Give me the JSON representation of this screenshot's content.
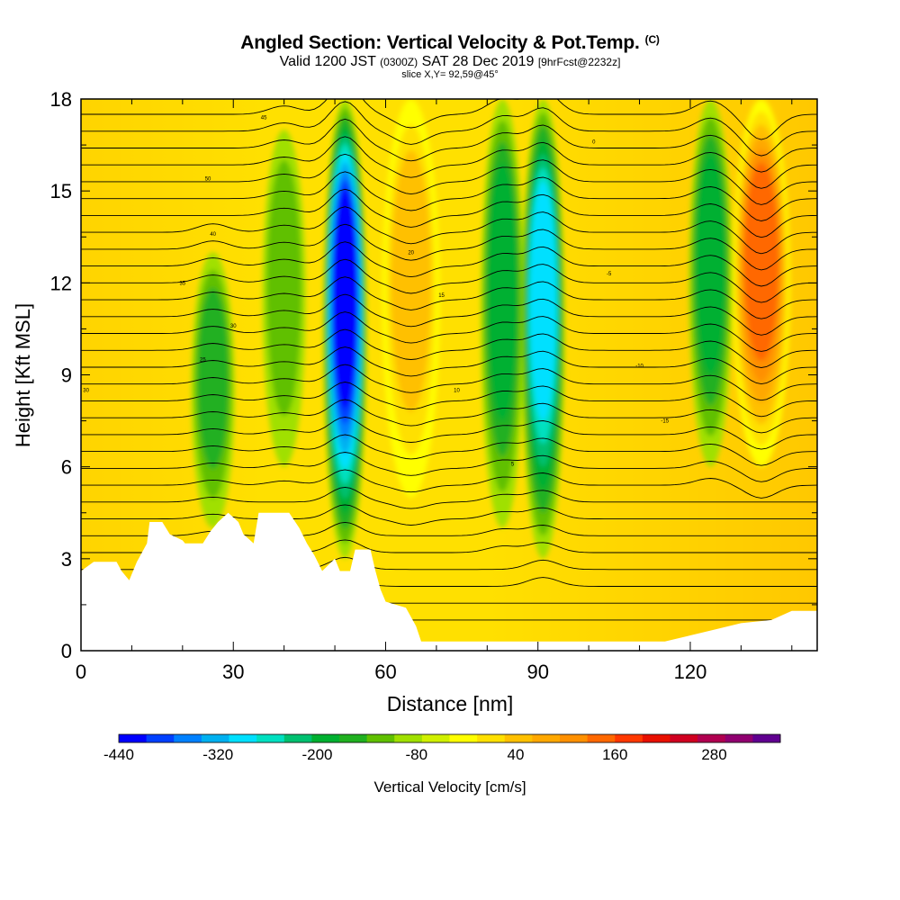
{
  "title": {
    "main": "Angled Section: Vertical Velocity & Pot.Temp.",
    "copyright": "(C)",
    "valid_prefix": "Valid 1200 JST",
    "utc_time": "(0300Z)",
    "date": "SAT 28 Dec 2019",
    "forecast": "[9hrFcst@2232z]",
    "slice": "slice X,Y= 92,59@45°"
  },
  "chart_data": {
    "type": "heatmap",
    "title": "Angled Section: Vertical Velocity & Pot.Temp.",
    "xlabel": "Distance [nm]",
    "ylabel": "Height [Kft MSL]",
    "xlim": [
      0,
      145
    ],
    "ylim": [
      0,
      18
    ],
    "x_ticks": [
      0,
      30,
      60,
      90,
      120
    ],
    "y_ticks": [
      0,
      3,
      6,
      9,
      12,
      15,
      18
    ],
    "colorbar": {
      "label": "Vertical Velocity [cm/s]",
      "range": [
        -440,
        360
      ],
      "step": 40,
      "tick_labels": [
        "-440",
        "-320",
        "-200",
        "-80",
        "40",
        "160",
        "280"
      ],
      "colors": [
        "#0000ff",
        "#0040ff",
        "#0080ff",
        "#00b0f0",
        "#00e0ff",
        "#00e0c0",
        "#00c070",
        "#00b030",
        "#20b020",
        "#60c000",
        "#a0e000",
        "#d0f000",
        "#ffff00",
        "#ffe000",
        "#ffc000",
        "#ffa800",
        "#ff9000",
        "#ff6800",
        "#ff3800",
        "#e81000",
        "#d00020",
        "#b00050",
        "#900070",
        "#600090"
      ]
    },
    "velocity_features": [
      {
        "x_center": 52,
        "kind": "downdraft",
        "peak_cms": -440,
        "height_range": [
          3,
          18
        ]
      },
      {
        "x_center": 65,
        "kind": "updraft",
        "peak_cms": 160,
        "height_range": [
          5,
          18
        ]
      },
      {
        "x_center": 83,
        "kind": "downdraft",
        "peak_cms": -180,
        "height_range": [
          4,
          18
        ]
      },
      {
        "x_center": 91,
        "kind": "downdraft",
        "peak_cms": -280,
        "height_range": [
          3,
          18
        ]
      },
      {
        "x_center": 124,
        "kind": "downdraft",
        "peak_cms": -160,
        "height_range": [
          6,
          18
        ]
      },
      {
        "x_center": 134,
        "kind": "updraft",
        "peak_cms": 300,
        "height_range": [
          6,
          18
        ]
      },
      {
        "x_center": 26,
        "kind": "downdraft",
        "peak_cms": -120,
        "height_range": [
          4,
          13
        ]
      },
      {
        "x_center": 40,
        "kind": "downdraft",
        "peak_cms": -100,
        "height_range": [
          6,
          17
        ]
      }
    ],
    "terrain_profile_kft": [
      [
        0,
        2.6
      ],
      [
        2.5,
        2.9
      ],
      [
        7,
        2.9
      ],
      [
        8,
        2.6
      ],
      [
        9.5,
        2.3
      ],
      [
        11,
        2.9
      ],
      [
        13,
        3.5
      ],
      [
        13.5,
        4.2
      ],
      [
        16,
        4.2
      ],
      [
        17.5,
        3.8
      ],
      [
        20,
        3.6
      ],
      [
        20.5,
        3.5
      ],
      [
        24,
        3.5
      ],
      [
        25.5,
        3.9
      ],
      [
        27,
        4.2
      ],
      [
        29,
        4.5
      ],
      [
        31,
        4.2
      ],
      [
        32,
        3.8
      ],
      [
        34,
        3.5
      ],
      [
        35,
        4.5
      ],
      [
        41,
        4.5
      ],
      [
        43,
        4.0
      ],
      [
        44.5,
        3.5
      ],
      [
        46,
        3.1
      ],
      [
        47.5,
        2.6
      ],
      [
        50,
        3.0
      ],
      [
        51,
        2.6
      ],
      [
        53,
        2.6
      ],
      [
        54,
        3.3
      ],
      [
        57,
        3.3
      ],
      [
        58,
        2.6
      ],
      [
        59,
        2.0
      ],
      [
        60,
        1.6
      ],
      [
        64,
        1.4
      ],
      [
        66,
        0.8
      ],
      [
        67,
        0.3
      ],
      [
        76,
        0.3
      ],
      [
        100,
        0.3
      ],
      [
        115,
        0.3
      ],
      [
        120,
        0.5
      ],
      [
        125,
        0.7
      ],
      [
        130,
        0.9
      ],
      [
        136,
        1.0
      ],
      [
        140,
        1.3
      ],
      [
        145,
        1.3
      ]
    ],
    "isentrope_labels": [
      "30",
      "45",
      "50",
      "40",
      "35",
      "30",
      "25",
      "20",
      "15",
      "10",
      "5",
      "0",
      "-5",
      "-10",
      "-15"
    ]
  }
}
